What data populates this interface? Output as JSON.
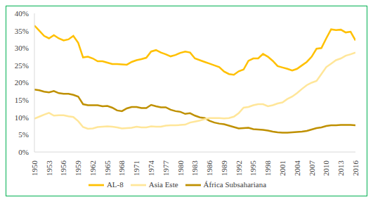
{
  "chart_data": {
    "type": "line",
    "x": [
      1950,
      1951,
      1952,
      1953,
      1954,
      1955,
      1956,
      1957,
      1958,
      1959,
      1960,
      1961,
      1962,
      1963,
      1964,
      1965,
      1966,
      1967,
      1968,
      1969,
      1970,
      1971,
      1972,
      1973,
      1974,
      1975,
      1976,
      1977,
      1978,
      1979,
      1980,
      1981,
      1982,
      1983,
      1984,
      1985,
      1986,
      1987,
      1988,
      1989,
      1990,
      1991,
      1992,
      1993,
      1994,
      1995,
      1996,
      1997,
      1998,
      1999,
      2000,
      2001,
      2002,
      2003,
      2004,
      2005,
      2006,
      2007,
      2008,
      2009,
      2010,
      2011,
      2012,
      2013,
      2014,
      2015,
      2016
    ],
    "series": [
      {
        "name": "África Subsahariana",
        "color": "#BF9000",
        "values": [
          18,
          17.8,
          17.4,
          17.2,
          17.6,
          17,
          16.8,
          16.8,
          16.5,
          16,
          13.8,
          13.5,
          13.5,
          13.5,
          13.2,
          13.3,
          12.8,
          12,
          11.8,
          12.6,
          13,
          13,
          12.7,
          12.7,
          13.6,
          13.2,
          12.9,
          12.9,
          12.2,
          11.8,
          11.6,
          11,
          11.2,
          10.5,
          10,
          9.8,
          9,
          8.5,
          8.2,
          8,
          7.6,
          7.2,
          6.8,
          6.9,
          7,
          6.6,
          6.5,
          6.4,
          6.2,
          5.9,
          5.7,
          5.6,
          5.6,
          5.7,
          5.8,
          5.9,
          6.1,
          6.5,
          6.9,
          7.1,
          7.5,
          7.7,
          7.7,
          7.8,
          7.8,
          7.8,
          7.7
        ]
      },
      {
        "name": "AL-8",
        "color": "#FFC000",
        "values": [
          36.5,
          35,
          33.5,
          32.8,
          33.7,
          32.8,
          32.2,
          32.5,
          33.5,
          31.5,
          27.3,
          27.5,
          27,
          26.2,
          26.2,
          25.8,
          25.4,
          25.4,
          25.3,
          25.2,
          26,
          26.5,
          26.8,
          27.2,
          29,
          29.4,
          28.7,
          28.2,
          27.6,
          28,
          28.6,
          29,
          28.7,
          27,
          26.5,
          26,
          25.5,
          25,
          24.5,
          23.2,
          22.5,
          22.3,
          23.3,
          23.8,
          26.3,
          27,
          27,
          28.3,
          27.5,
          26.3,
          24.8,
          24.4,
          24,
          23.5,
          24,
          25,
          26,
          27.5,
          29.8,
          30,
          32.8,
          35.4,
          35.2,
          35.3,
          34.5,
          34.7,
          32.2
        ]
      },
      {
        "name": "Asia Este",
        "color": "#FFE699",
        "values": [
          9.6,
          10.2,
          10.8,
          11.3,
          10.5,
          10.6,
          10.6,
          10.3,
          10.1,
          8.9,
          7.2,
          6.7,
          6.8,
          7.2,
          7.3,
          7.4,
          7.3,
          7.1,
          6.8,
          6.9,
          7,
          7.3,
          7.1,
          7.1,
          7.4,
          7.3,
          7.3,
          7.6,
          7.7,
          7.7,
          7.8,
          7.9,
          8.5,
          8.8,
          9.1,
          9.5,
          9.8,
          9.8,
          9.8,
          9.7,
          9.8,
          10.2,
          11.2,
          12.8,
          13,
          13.5,
          13.8,
          13.8,
          13.2,
          13.5,
          14,
          14.3,
          15.3,
          16,
          17,
          18.2,
          19.3,
          20,
          20.5,
          22.5,
          24.5,
          25.5,
          26.5,
          27,
          27.8,
          28.2,
          28.7
        ]
      }
    ],
    "xlim": [
      1950,
      2016
    ],
    "xticks": [
      1950,
      1953,
      1956,
      1959,
      1962,
      1965,
      1968,
      1971,
      1974,
      1977,
      1980,
      1983,
      1986,
      1989,
      1992,
      1995,
      1998,
      2001,
      2004,
      2007,
      2010,
      2013,
      2016
    ],
    "ylim": [
      0,
      40
    ],
    "yticks": [
      {
        "value": 0,
        "label": "0%"
      },
      {
        "value": 5,
        "label": "5%"
      },
      {
        "value": 10,
        "label": "10%"
      },
      {
        "value": 15,
        "label": "15%"
      },
      {
        "value": 20,
        "label": "20%"
      },
      {
        "value": 25,
        "label": "25%"
      },
      {
        "value": 30,
        "label": "30%"
      },
      {
        "value": 35,
        "label": "35%"
      },
      {
        "value": 40,
        "label": "40%"
      }
    ],
    "grid": false,
    "legend": "bottom"
  }
}
